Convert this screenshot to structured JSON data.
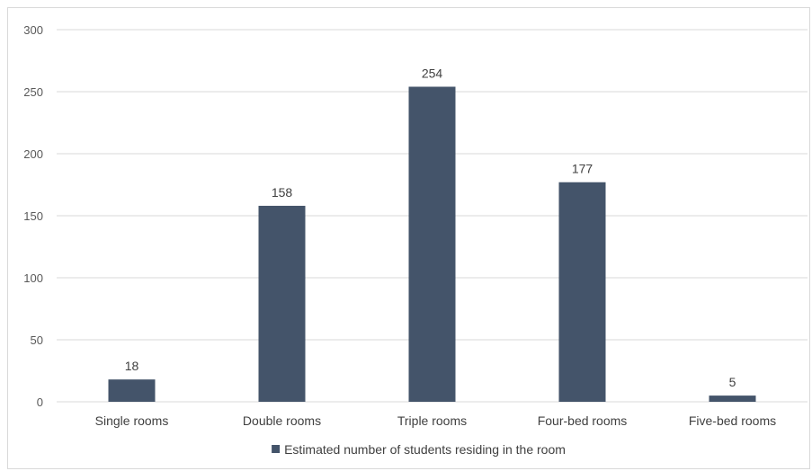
{
  "chart_data": {
    "type": "bar",
    "categories": [
      "Single rooms",
      "Double rooms",
      "Triple rooms",
      "Four-bed rooms",
      "Five-bed rooms"
    ],
    "series": [
      {
        "name": "Estimated number of students residing in the room",
        "values": [
          18,
          158,
          254,
          177,
          5
        ]
      }
    ],
    "data_labels": [
      "18",
      "158",
      "254",
      "177",
      "5"
    ],
    "ylim": [
      0,
      300
    ],
    "yticks": [
      0,
      50,
      100,
      150,
      200,
      250,
      300
    ],
    "grid": true,
    "legend_position": "bottom",
    "bar_color": "#44546a",
    "grid_color": "#d9d9d9"
  }
}
